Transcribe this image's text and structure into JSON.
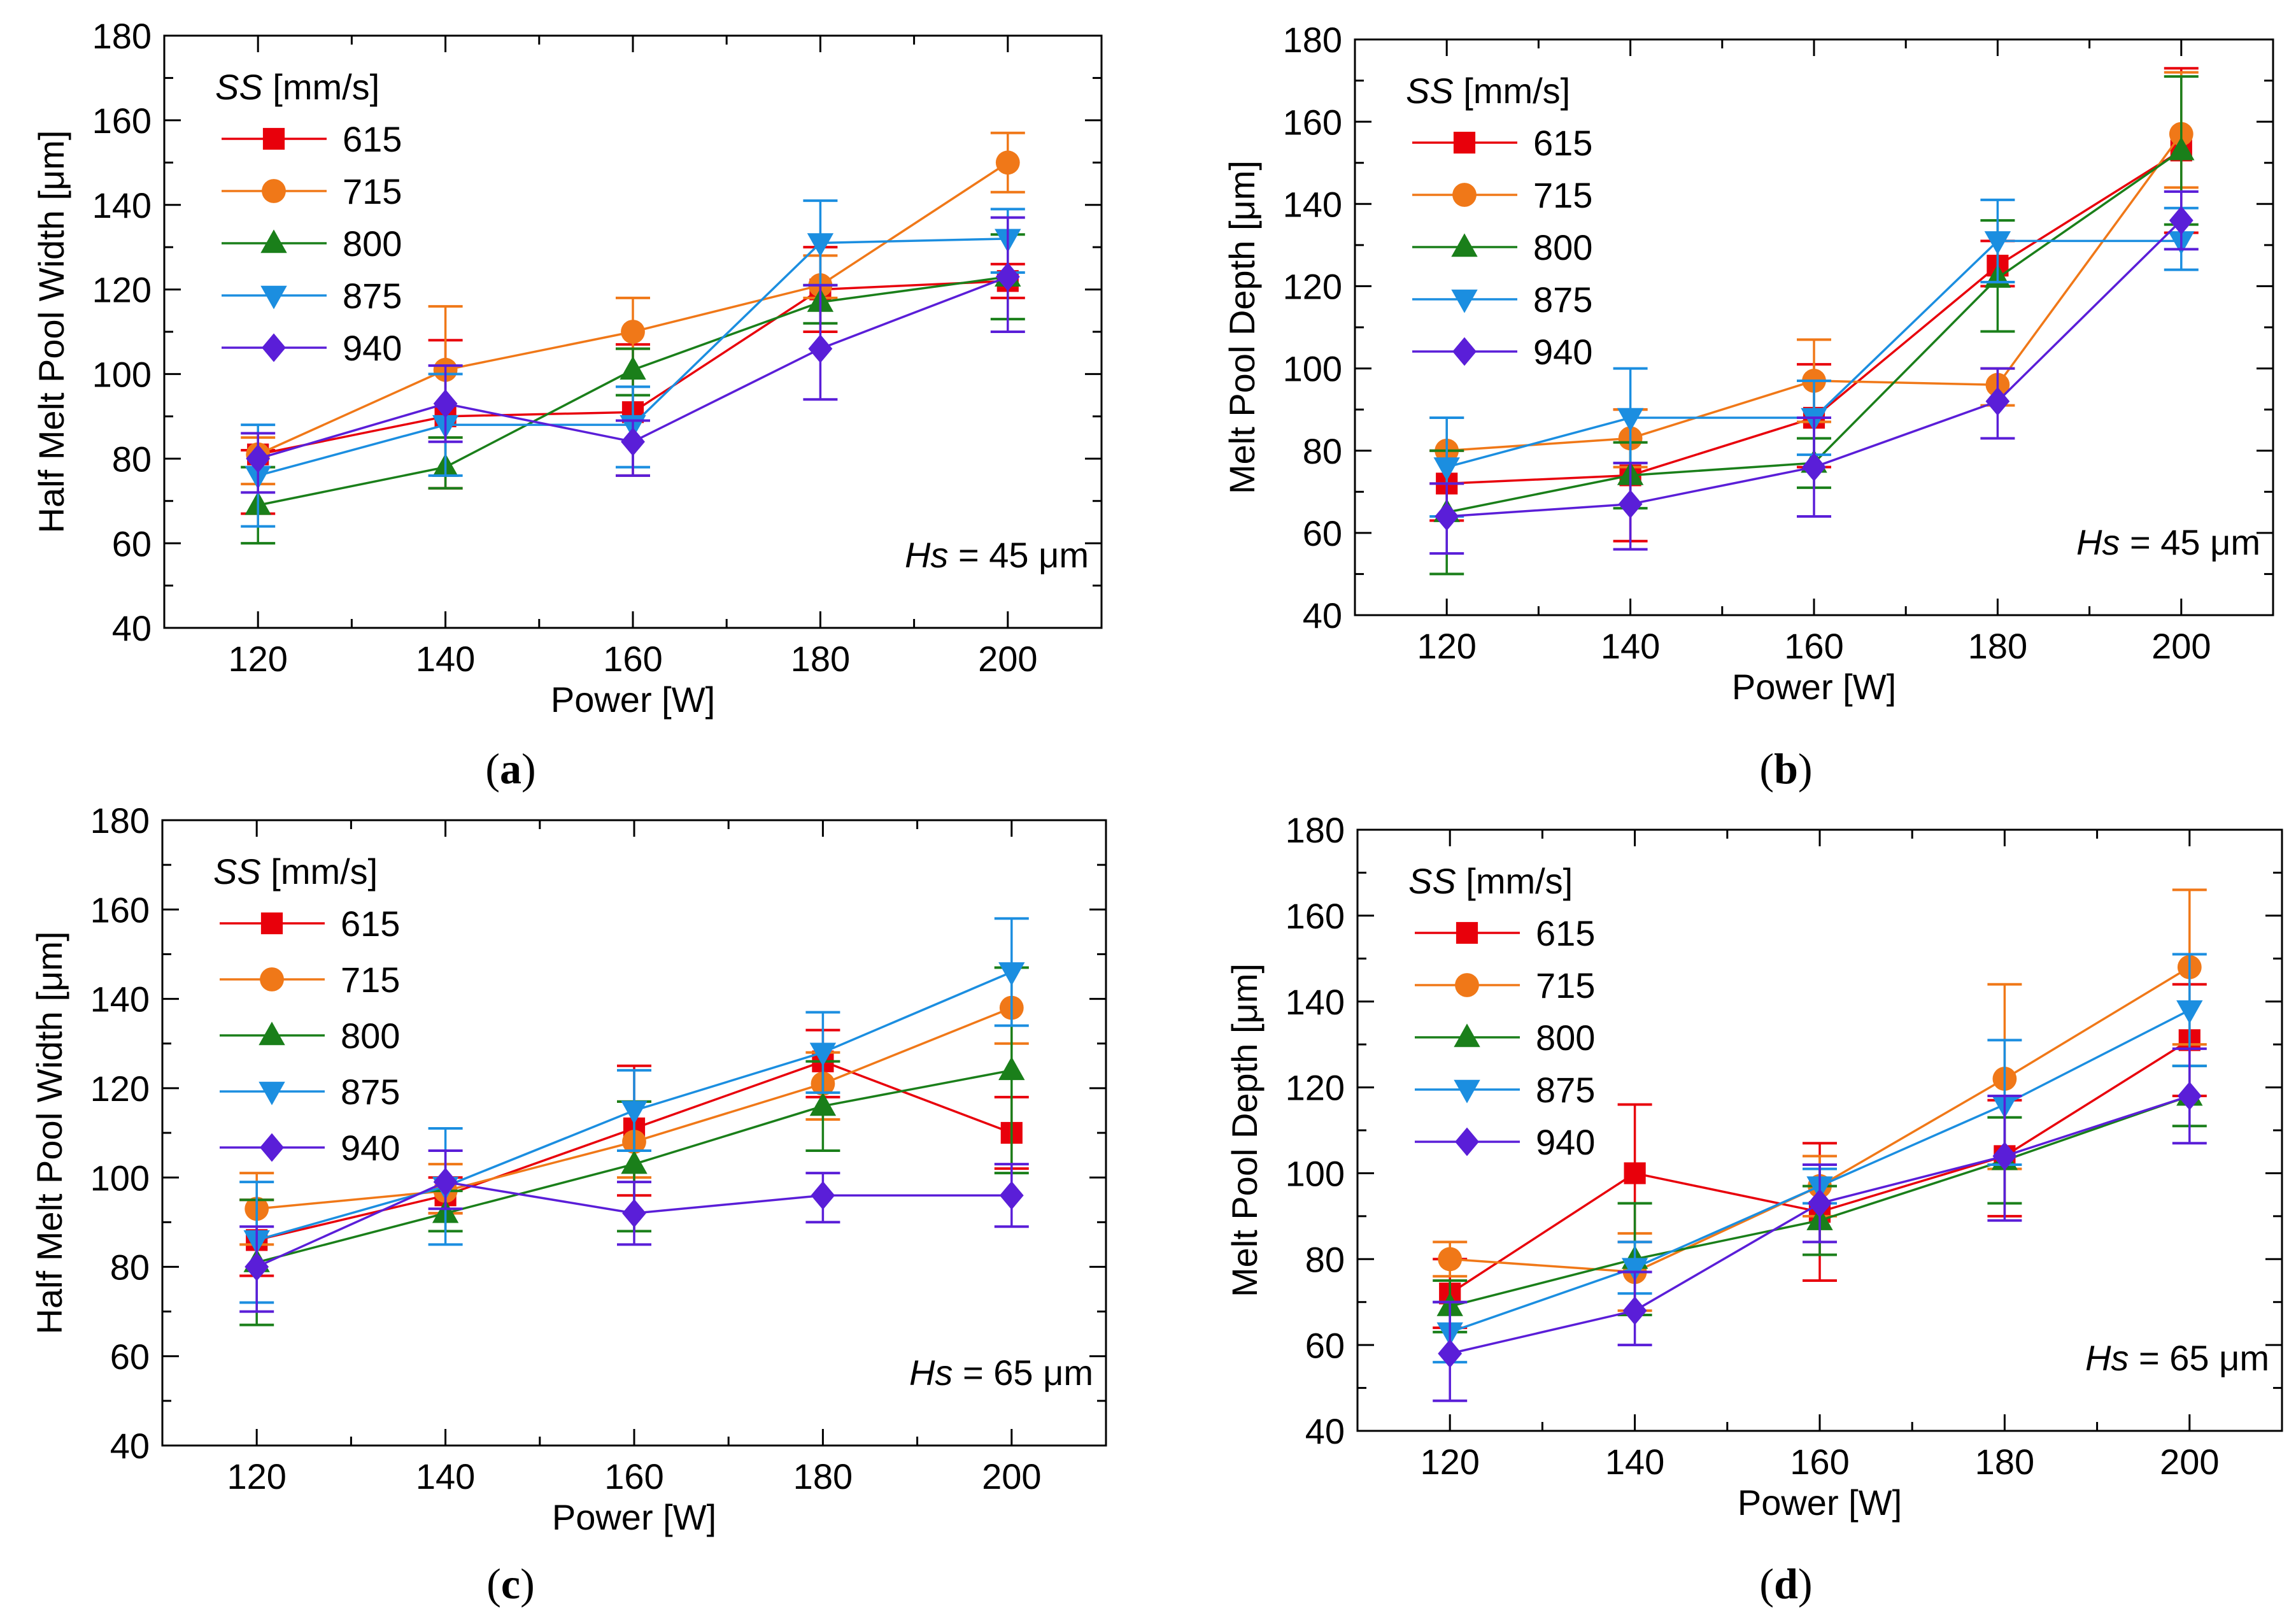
{
  "chart_data": [
    {
      "type": "line",
      "panel_label": "(a)",
      "title": "",
      "xlabel": "Power [W]",
      "ylabel": "Half Melt Pool Width [μm]",
      "x": [
        120,
        140,
        160,
        180,
        200
      ],
      "xlim": [
        110,
        210
      ],
      "ylim": [
        40,
        180
      ],
      "xticks": [
        120,
        140,
        160,
        180,
        200
      ],
      "yticks": [
        40,
        60,
        80,
        100,
        120,
        140,
        160,
        180
      ],
      "legend": {
        "title_italic": "SS",
        "title_rest": " [mm/s]",
        "position": "top-left"
      },
      "annotation": {
        "italic": "Hs",
        "rest": " = 45 μm"
      },
      "series": [
        {
          "name": "615",
          "color": "#e8000b",
          "marker": "square",
          "values": [
            81,
            90,
            91,
            120,
            122
          ],
          "err_low": [
            67,
            73,
            76,
            110,
            118
          ],
          "err_high": [
            82,
            108,
            107,
            130,
            126
          ]
        },
        {
          "name": "715",
          "color": "#f07818",
          "marker": "circle",
          "values": [
            81,
            101,
            110,
            121,
            150
          ],
          "err_low": [
            74,
            85,
            106,
            118,
            143
          ],
          "err_high": [
            85,
            116,
            118,
            128,
            157
          ]
        },
        {
          "name": "800",
          "color": "#1a7f1a",
          "marker": "triangle-up",
          "values": [
            69,
            78,
            101,
            117,
            123
          ],
          "err_low": [
            60,
            73,
            95,
            112,
            113
          ],
          "err_high": [
            78,
            85,
            106,
            121,
            133
          ]
        },
        {
          "name": "875",
          "color": "#1b8ee0",
          "marker": "triangle-down",
          "values": [
            76,
            88,
            88,
            131,
            132
          ],
          "err_low": [
            64,
            76,
            78,
            121,
            124
          ],
          "err_high": [
            88,
            100,
            97,
            141,
            139
          ]
        },
        {
          "name": "940",
          "color": "#5a1ed8",
          "marker": "diamond",
          "values": [
            80,
            93,
            84,
            106,
            123
          ],
          "err_low": [
            72,
            84,
            76,
            94,
            110
          ],
          "err_high": [
            86,
            102,
            89,
            121,
            137
          ]
        }
      ]
    },
    {
      "type": "line",
      "panel_label": "(b)",
      "title": "",
      "xlabel": "Power [W]",
      "ylabel": "Melt Pool Depth [μm]",
      "x": [
        120,
        140,
        160,
        180,
        200
      ],
      "xlim": [
        110,
        210
      ],
      "ylim": [
        40,
        180
      ],
      "xticks": [
        120,
        140,
        160,
        180,
        200
      ],
      "yticks": [
        40,
        60,
        80,
        100,
        120,
        140,
        160,
        180
      ],
      "legend": {
        "title_italic": "SS",
        "title_rest": " [mm/s]",
        "position": "top-left"
      },
      "annotation": {
        "italic": "Hs",
        "rest": " = 45 μm"
      },
      "series": [
        {
          "name": "615",
          "color": "#e8000b",
          "marker": "square",
          "values": [
            72,
            74,
            88,
            125,
            153
          ],
          "err_low": [
            63,
            58,
            76,
            120,
            133
          ],
          "err_high": [
            80,
            90,
            101,
            131,
            173
          ]
        },
        {
          "name": "715",
          "color": "#f07818",
          "marker": "circle",
          "values": [
            80,
            83,
            97,
            96,
            157
          ],
          "err_low": [
            72,
            76,
            87,
            91,
            144
          ],
          "err_high": [
            88,
            90,
            107,
            100,
            172
          ]
        },
        {
          "name": "800",
          "color": "#1a7f1a",
          "marker": "triangle-up",
          "values": [
            65,
            74,
            77,
            122,
            153
          ],
          "err_low": [
            50,
            66,
            71,
            109,
            135
          ],
          "err_high": [
            80,
            82,
            83,
            136,
            171
          ]
        },
        {
          "name": "875",
          "color": "#1b8ee0",
          "marker": "triangle-down",
          "values": [
            76,
            88,
            88,
            131,
            131
          ],
          "err_low": [
            64,
            77,
            79,
            121,
            124
          ],
          "err_high": [
            88,
            100,
            97,
            141,
            139
          ]
        },
        {
          "name": "940",
          "color": "#5a1ed8",
          "marker": "diamond",
          "values": [
            64,
            67,
            76,
            92,
            136
          ],
          "err_low": [
            55,
            56,
            64,
            83,
            129
          ],
          "err_high": [
            72,
            77,
            88,
            100,
            143
          ]
        }
      ]
    },
    {
      "type": "line",
      "panel_label": "(c)",
      "title": "",
      "xlabel": "Power [W]",
      "ylabel": "Half Melt Pool Width [μm]",
      "x": [
        120,
        140,
        160,
        180,
        200
      ],
      "xlim": [
        110,
        210
      ],
      "ylim": [
        40,
        180
      ],
      "xticks": [
        120,
        140,
        160,
        180,
        200
      ],
      "yticks": [
        40,
        60,
        80,
        100,
        120,
        140,
        160,
        180
      ],
      "legend": {
        "title_italic": "SS",
        "title_rest": " [mm/s]",
        "position": "top-left"
      },
      "annotation": {
        "italic": "Hs",
        "rest": " = 65 μm"
      },
      "series": [
        {
          "name": "615",
          "color": "#e8000b",
          "marker": "square",
          "values": [
            86,
            96,
            111,
            126,
            110
          ],
          "err_low": [
            78,
            92,
            96,
            118,
            102
          ],
          "err_high": [
            95,
            100,
            125,
            133,
            118
          ]
        },
        {
          "name": "715",
          "color": "#f07818",
          "marker": "circle",
          "values": [
            93,
            97,
            108,
            121,
            138
          ],
          "err_low": [
            85,
            92,
            100,
            113,
            130
          ],
          "err_high": [
            101,
            103,
            117,
            128,
            147
          ]
        },
        {
          "name": "800",
          "color": "#1a7f1a",
          "marker": "triangle-up",
          "values": [
            81,
            92,
            103,
            116,
            124
          ],
          "err_low": [
            67,
            88,
            88,
            106,
            101
          ],
          "err_high": [
            95,
            97,
            117,
            126,
            147
          ]
        },
        {
          "name": "875",
          "color": "#1b8ee0",
          "marker": "triangle-down",
          "values": [
            86,
            98,
            115,
            128,
            146
          ],
          "err_low": [
            72,
            85,
            106,
            119,
            134
          ],
          "err_high": [
            99,
            111,
            124,
            137,
            158
          ]
        },
        {
          "name": "940",
          "color": "#5a1ed8",
          "marker": "diamond",
          "values": [
            80,
            99,
            92,
            96,
            96
          ],
          "err_low": [
            70,
            93,
            85,
            90,
            89
          ],
          "err_high": [
            89,
            106,
            99,
            101,
            103
          ]
        }
      ]
    },
    {
      "type": "line",
      "panel_label": "(d)",
      "title": "",
      "xlabel": "Power [W]",
      "ylabel": "Melt Pool Depth [μm]",
      "x": [
        120,
        140,
        160,
        180,
        200
      ],
      "xlim": [
        110,
        210
      ],
      "ylim": [
        40,
        180
      ],
      "xticks": [
        120,
        140,
        160,
        180,
        200
      ],
      "yticks": [
        40,
        60,
        80,
        100,
        120,
        140,
        160,
        180
      ],
      "legend": {
        "title_italic": "SS",
        "title_rest": " [mm/s]",
        "position": "top-left"
      },
      "annotation": {
        "italic": "Hs",
        "rest": " = 65 μm"
      },
      "series": [
        {
          "name": "615",
          "color": "#e8000b",
          "marker": "square",
          "values": [
            72,
            100,
            91,
            104,
            131
          ],
          "err_low": [
            64,
            84,
            75,
            90,
            118
          ],
          "err_high": [
            80,
            116,
            107,
            117,
            144
          ]
        },
        {
          "name": "715",
          "color": "#f07818",
          "marker": "circle",
          "values": [
            80,
            77,
            97,
            122,
            148
          ],
          "err_low": [
            76,
            68,
            90,
            101,
            130
          ],
          "err_high": [
            84,
            86,
            104,
            144,
            166
          ]
        },
        {
          "name": "800",
          "color": "#1a7f1a",
          "marker": "triangle-up",
          "values": [
            69,
            80,
            89,
            103,
            118
          ],
          "err_low": [
            63,
            67,
            81,
            93,
            111
          ],
          "err_high": [
            75,
            93,
            97,
            113,
            125
          ]
        },
        {
          "name": "875",
          "color": "#1b8ee0",
          "marker": "triangle-down",
          "values": [
            63,
            78,
            97,
            116,
            138
          ],
          "err_low": [
            56,
            72,
            93,
            102,
            125
          ],
          "err_high": [
            70,
            84,
            101,
            131,
            151
          ]
        },
        {
          "name": "940",
          "color": "#5a1ed8",
          "marker": "diamond",
          "values": [
            58,
            68,
            93,
            104,
            118
          ],
          "err_low": [
            47,
            60,
            84,
            89,
            107
          ],
          "err_high": [
            70,
            77,
            102,
            118,
            129
          ]
        }
      ]
    }
  ]
}
